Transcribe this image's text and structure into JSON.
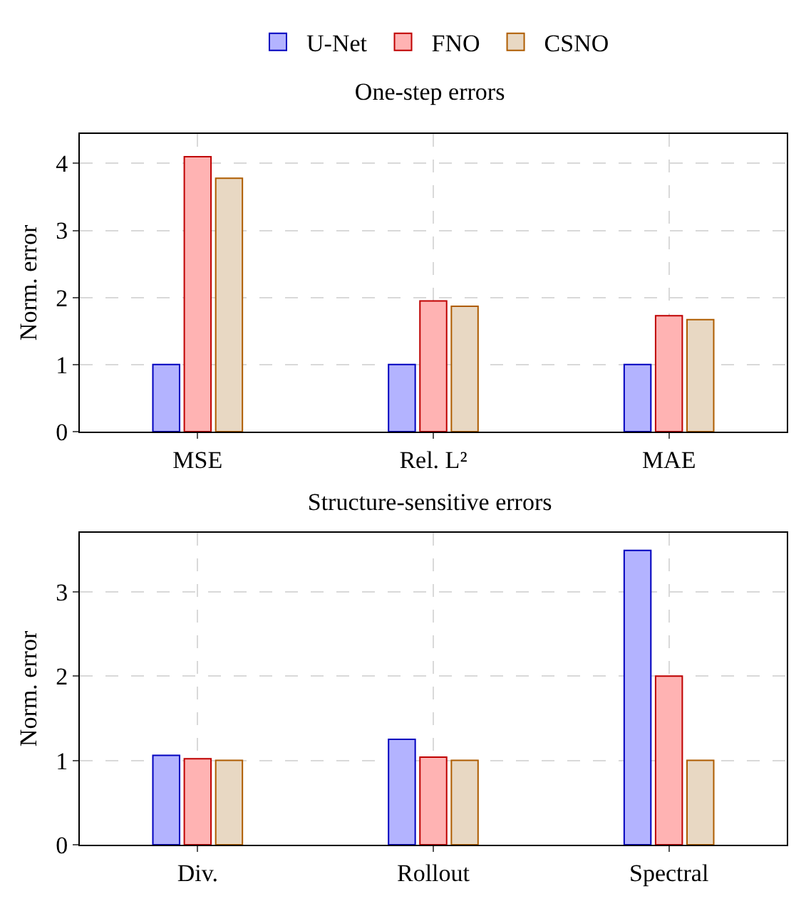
{
  "chart_data": [
    {
      "type": "bar",
      "title": "One-step errors",
      "ylabel": "Norm. error",
      "categories": [
        "MSE",
        "Rel. L²",
        "MAE"
      ],
      "series": [
        {
          "name": "U-Net",
          "color": "#b3b3ff",
          "values": [
            1,
            1,
            1
          ]
        },
        {
          "name": "FNO",
          "color": "#ffb3b3",
          "values": [
            4.1,
            1.95,
            1.73
          ]
        },
        {
          "name": "CSNO",
          "color": "#e8d8c3",
          "values": [
            3.78,
            1.87,
            1.67
          ]
        }
      ],
      "ylim": [
        0,
        4.44
      ],
      "yticks": [
        0,
        1,
        2,
        3,
        4
      ],
      "grid": true,
      "legend": "top"
    },
    {
      "type": "bar",
      "title": "Structure-sensitive errors",
      "ylabel": "Norm. error",
      "categories": [
        "Div.",
        "Rollout",
        "Spectral"
      ],
      "series": [
        {
          "color": "#b3b3ff",
          "values": [
            1.06,
            1.25,
            3.49
          ]
        },
        {
          "color": "#ffb3b3",
          "values": [
            1.02,
            1.04,
            2.0
          ]
        },
        {
          "color": "#e8d8c3",
          "values": [
            1,
            1,
            1
          ]
        }
      ],
      "ylim": [
        0,
        3.7
      ],
      "yticks": [
        0,
        1,
        2,
        3
      ],
      "grid": true
    }
  ]
}
